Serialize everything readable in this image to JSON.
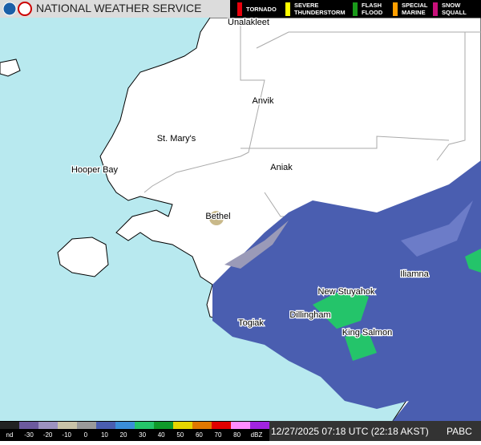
{
  "header": {
    "title": "NATIONAL WEATHER SERVICE",
    "warnings": [
      {
        "lines": [
          "TORNADO"
        ],
        "color": "#e8000b"
      },
      {
        "lines": [
          "SEVERE",
          "THUNDERSTORM"
        ],
        "color": "#ffff00"
      },
      {
        "lines": [
          "FLASH",
          "FLOOD"
        ],
        "color": "#1a9a1a"
      },
      {
        "lines": [
          "SPECIAL",
          "MARINE"
        ],
        "color": "#ff9f00"
      },
      {
        "lines": [
          "SNOW",
          "SQUALL"
        ],
        "color": "#c8107a"
      }
    ]
  },
  "places": [
    "Unalakleet",
    "Anvik",
    "St. Mary's",
    "Hooper Bay",
    "Aniak",
    "Bethel",
    "Iliamna",
    "New Stuyahok",
    "Dillingham",
    "Togiak",
    "King Salmon"
  ],
  "scale": {
    "start": "nd",
    "ticks": [
      -30,
      -20,
      -10,
      0,
      10,
      20,
      30,
      40,
      50,
      60,
      70,
      80
    ],
    "unit": "dBZ",
    "colors": [
      "#222222",
      "#6c5a9e",
      "#9c92c0",
      "#c9c3a8",
      "#9a9a9a",
      "#4a5eb0",
      "#3a8ed8",
      "#24c46a",
      "#0f9a2a",
      "#e6d600",
      "#e07800",
      "#e00000",
      "#ff8cff",
      "#a024e0"
    ]
  },
  "timestamp": "12/27/2025 07:18 UTC (22:18 AKST)",
  "station": "PABC"
}
